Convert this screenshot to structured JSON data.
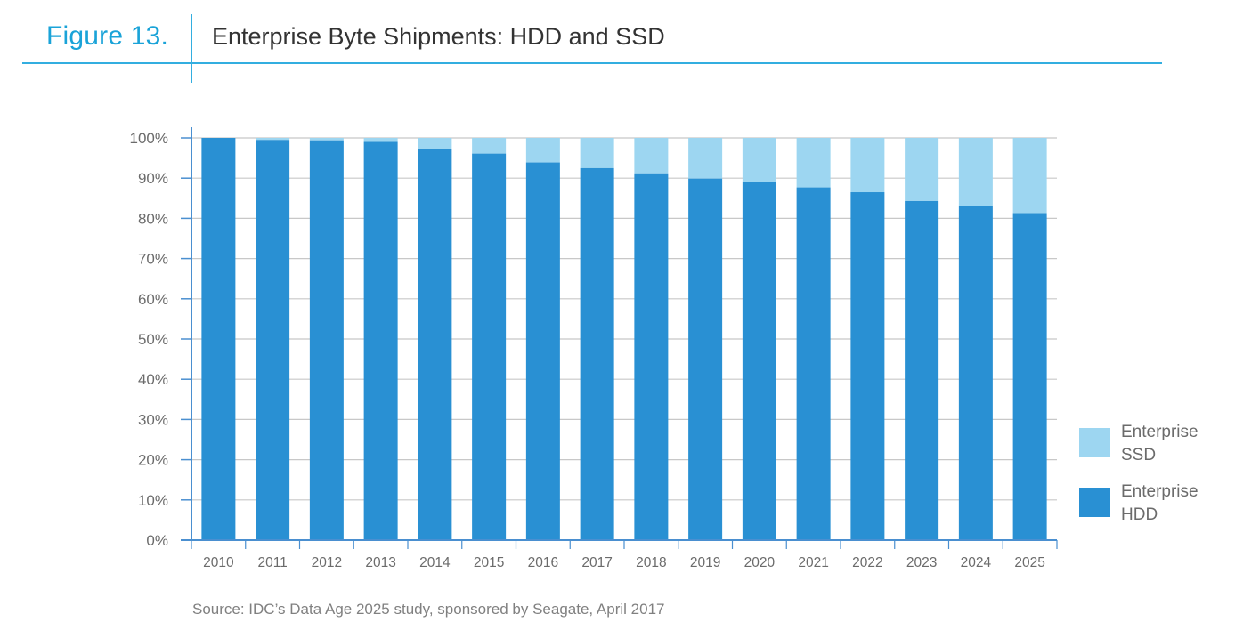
{
  "figure": {
    "number": "Figure 13.",
    "title": "Enterprise Byte Shipments: HDD and SSD"
  },
  "source": "Source: IDC’s Data Age 2025 study, sponsored by Seagate, April 2017",
  "colors": {
    "accent": "#1aa3d8",
    "hdd": "#2990d3",
    "ssd": "#9dd6f1",
    "grid": "#c8c8c8",
    "axis": "#4a8fd0"
  },
  "chart_data": {
    "type": "bar",
    "stacked": true,
    "normalized_percent": true,
    "categories": [
      "2010",
      "2011",
      "2012",
      "2013",
      "2014",
      "2015",
      "2016",
      "2017",
      "2018",
      "2019",
      "2020",
      "2021",
      "2022",
      "2023",
      "2024",
      "2025"
    ],
    "series": [
      {
        "name_lines": [
          "Enterprise",
          "HDD"
        ],
        "values": [
          100.0,
          99.5,
          99.4,
          99.0,
          97.3,
          96.1,
          93.9,
          92.5,
          91.2,
          89.9,
          89.0,
          87.7,
          86.5,
          84.3,
          83.1,
          81.3
        ]
      },
      {
        "name_lines": [
          "Enterprise",
          "SSD"
        ],
        "values": [
          0.0,
          0.5,
          0.6,
          1.0,
          2.7,
          3.9,
          6.1,
          7.5,
          8.8,
          10.1,
          11.0,
          12.3,
          13.5,
          15.7,
          16.9,
          18.7
        ]
      }
    ],
    "y_ticks": [
      "0%",
      "10%",
      "20%",
      "30%",
      "40%",
      "50%",
      "60%",
      "70%",
      "80%",
      "90%",
      "100%"
    ],
    "ylim": [
      0,
      100
    ],
    "grid": true,
    "legend_position": "right"
  }
}
